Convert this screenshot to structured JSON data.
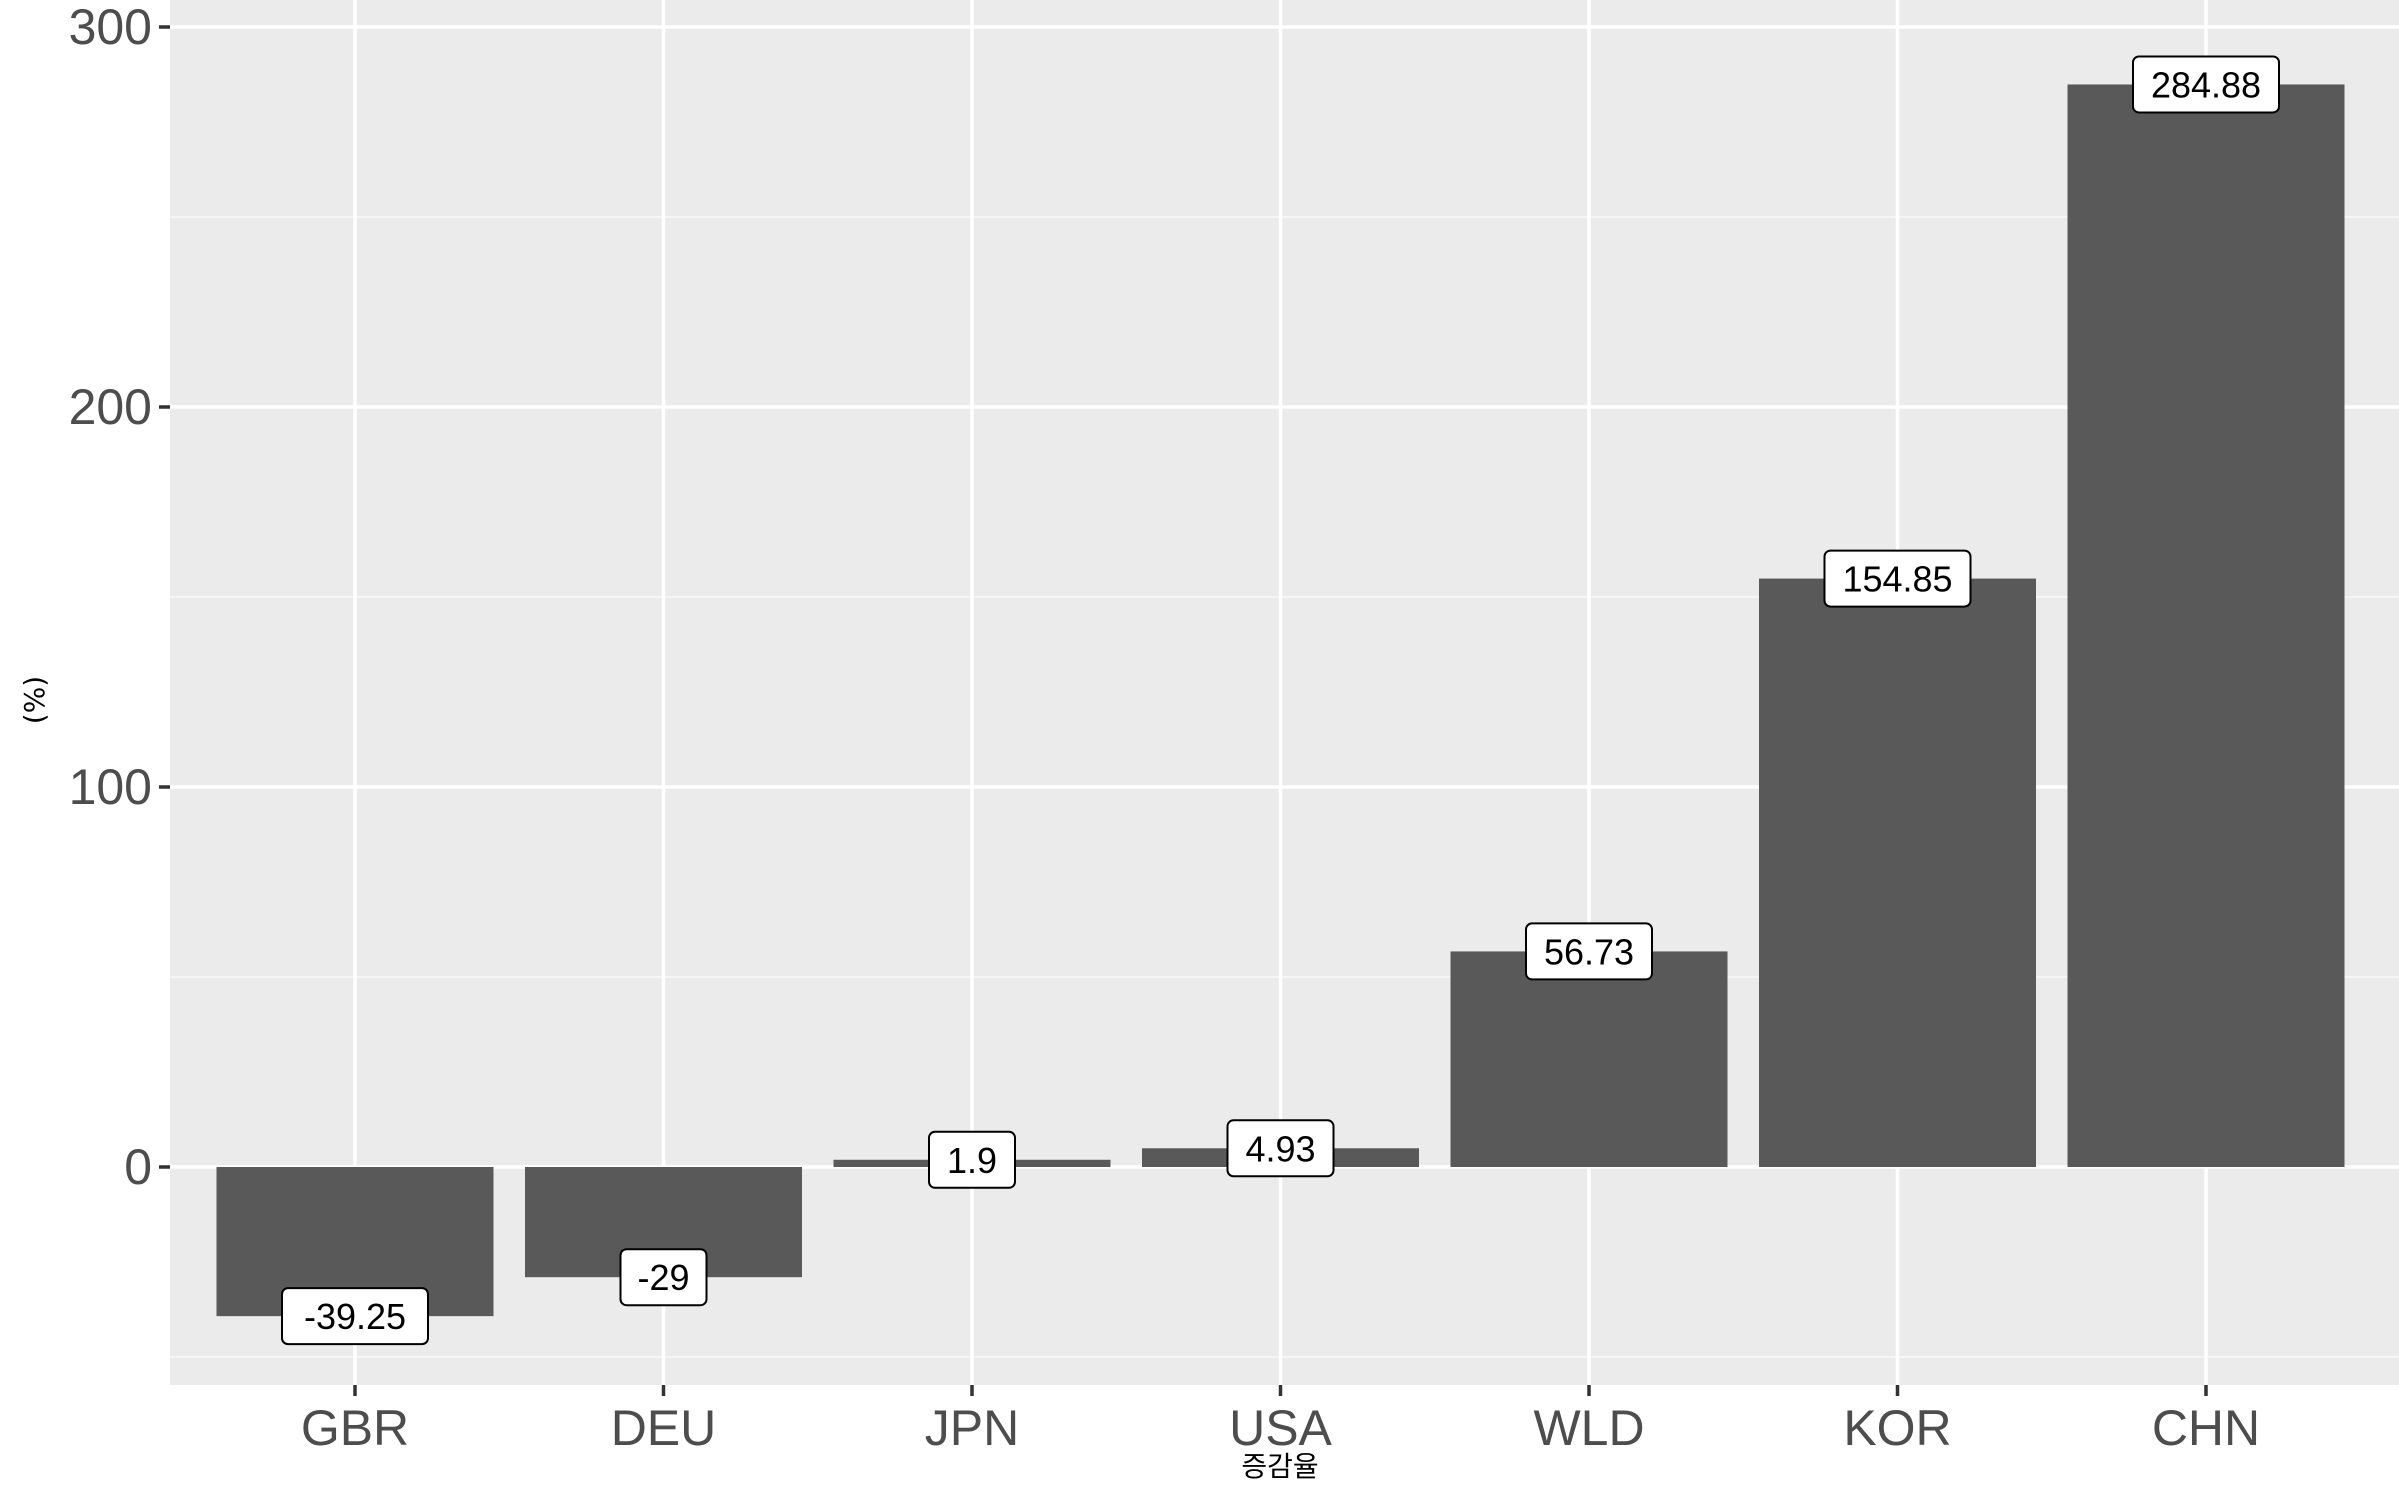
{
  "chart_data": {
    "type": "bar",
    "categories": [
      "GBR",
      "DEU",
      "JPN",
      "USA",
      "WLD",
      "KOR",
      "CHN"
    ],
    "values": [
      -39.25,
      -29,
      1.9,
      4.93,
      56.73,
      154.85,
      284.88
    ],
    "data_labels": [
      "-39.25",
      "-29",
      "1.9",
      "4.93",
      "56.73",
      "154.85",
      "284.88"
    ],
    "title": "",
    "xlabel": "증감율",
    "ylabel": "(%)",
    "ylim": [
      -50,
      300
    ],
    "yticks": [
      0,
      100,
      200,
      300
    ],
    "ytick_labels": [
      "0",
      "100",
      "200",
      "300"
    ],
    "grid": true,
    "colors": {
      "bar": "#595959",
      "panel": "#ebebeb",
      "grid_major": "#ffffff",
      "grid_minor": "#f5f5f5",
      "tick_text": "#4d4d4d"
    }
  }
}
